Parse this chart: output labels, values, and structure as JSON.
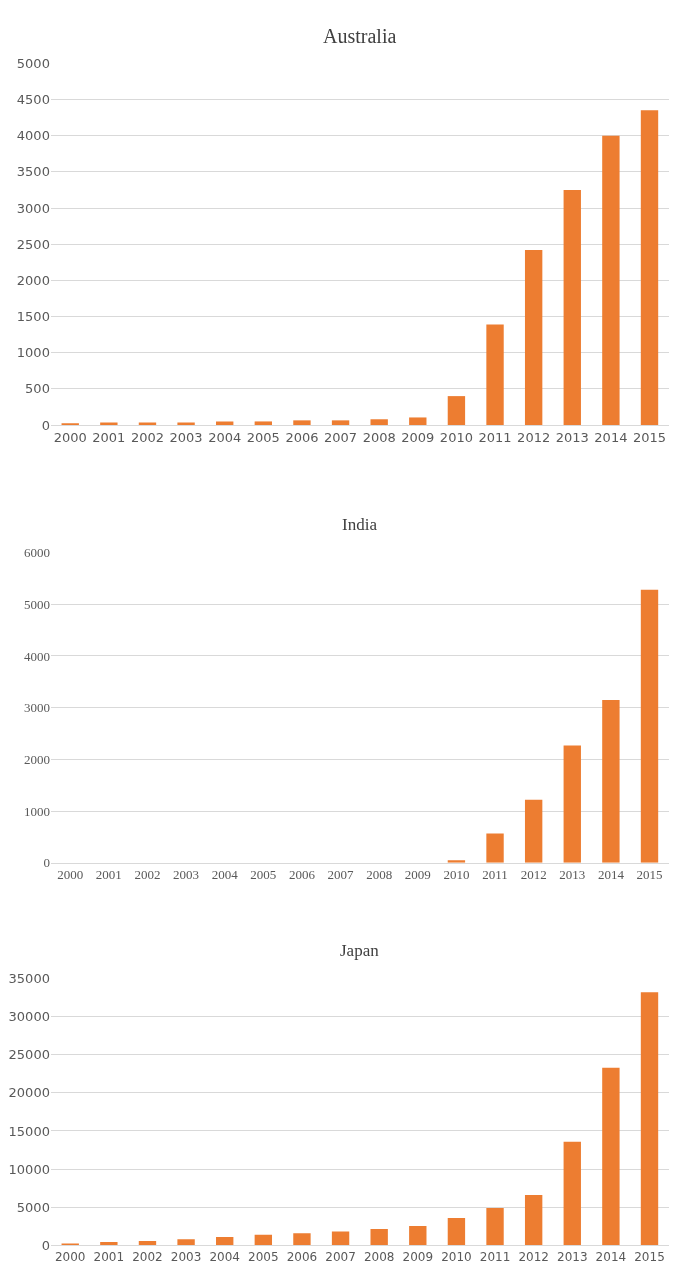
{
  "chart_data": [
    {
      "type": "bar",
      "title": "Australia",
      "categories": [
        "2000",
        "2001",
        "2002",
        "2003",
        "2004",
        "2005",
        "2006",
        "2007",
        "2008",
        "2009",
        "2010",
        "2011",
        "2012",
        "2013",
        "2014",
        "2015"
      ],
      "values": [
        20,
        35,
        35,
        35,
        50,
        50,
        65,
        65,
        80,
        105,
        400,
        1390,
        2420,
        3250,
        4000,
        4350
      ],
      "color": "#ed7d31",
      "ylim": [
        0,
        5000
      ],
      "yticks": [
        0,
        500,
        1000,
        1500,
        2000,
        2500,
        3000,
        3500,
        4000,
        4500,
        5000
      ],
      "grid": "y"
    },
    {
      "type": "bar",
      "title": "India",
      "categories": [
        "2000",
        "2001",
        "2002",
        "2003",
        "2004",
        "2005",
        "2006",
        "2007",
        "2008",
        "2009",
        "2010",
        "2011",
        "2012",
        "2013",
        "2014",
        "2015"
      ],
      "values": [
        0,
        0,
        0,
        0,
        0,
        0,
        0,
        0,
        0,
        0,
        50,
        570,
        1220,
        2270,
        3150,
        5280
      ],
      "color": "#ed7d31",
      "ylim": [
        0,
        6000
      ],
      "yticks": [
        0,
        1000,
        2000,
        3000,
        4000,
        5000,
        6000
      ],
      "grid": "y"
    },
    {
      "type": "bar",
      "title": "Japan",
      "categories": [
        "2000",
        "2001",
        "2002",
        "2003",
        "2004",
        "2005",
        "2006",
        "2007",
        "2008",
        "2009",
        "2010",
        "2011",
        "2012",
        "2013",
        "2014",
        "2015"
      ],
      "values": [
        250,
        450,
        580,
        800,
        1100,
        1400,
        1600,
        1800,
        2150,
        2550,
        3600,
        4900,
        6600,
        13600,
        23300,
        33200
      ],
      "color": "#ed7d31",
      "ylim": [
        0,
        35000
      ],
      "yticks": [
        0,
        5000,
        10000,
        15000,
        20000,
        25000,
        30000,
        35000
      ],
      "grid": "y"
    }
  ]
}
